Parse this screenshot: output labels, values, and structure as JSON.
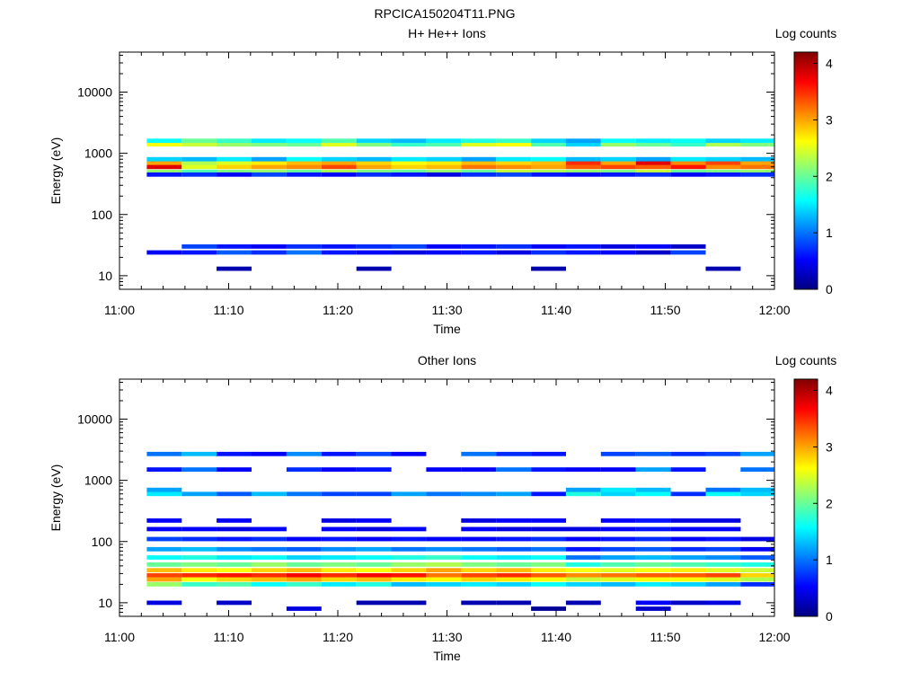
{
  "figure_title": "RPCICA150204T11.PNG",
  "colors": {
    "colormap": [
      "#000080",
      "#0000ff",
      "#0080ff",
      "#00ffff",
      "#80ff80",
      "#ffff00",
      "#ff8000",
      "#ff0000",
      "#800000"
    ]
  },
  "chart_data": [
    {
      "type": "heatmap",
      "title": "H+ He++ Ions",
      "xlabel": "Time",
      "ylabel": "Energy (eV)",
      "x_ticks": [
        "11:00",
        "11:10",
        "11:20",
        "11:30",
        "11:40",
        "11:50",
        "12:00"
      ],
      "y_ticks": [
        "10",
        "100",
        "1000",
        "10000"
      ],
      "y_scale": "log",
      "ylim": [
        6,
        45000
      ],
      "colorbar": {
        "label": "Log counts",
        "ticks": [
          "0",
          "1",
          "2",
          "3",
          "4"
        ],
        "range": [
          0,
          4.2
        ]
      },
      "time_bins_min": [
        2.5,
        5.7,
        8.9,
        12.1,
        15.3,
        18.5,
        21.7,
        24.9,
        28.1,
        31.3,
        34.5,
        37.7,
        40.9,
        44.1,
        47.3,
        50.5,
        53.7,
        56.9,
        60.0
      ],
      "energy_rows": [
        {
          "e": 600,
          "c": [
            3.8,
            2.5,
            2.8,
            3.0,
            3.1,
            3.4,
            3.0,
            2.8,
            2.9,
            3.2,
            3.1,
            3.0,
            3.3,
            3.4,
            3.3,
            3.6,
            3.1,
            3.2
          ]
        },
        {
          "e": 700,
          "c": [
            3.0,
            2.3,
            2.5,
            2.7,
            2.9,
            3.0,
            2.8,
            2.6,
            2.7,
            2.9,
            2.8,
            2.9,
            3.5,
            3.0,
            3.8,
            3.1,
            3.4,
            3.0
          ]
        },
        {
          "e": 500,
          "c": [
            2.2,
            1.9,
            2.1,
            2.2,
            2.0,
            2.3,
            2.1,
            2.0,
            2.2,
            2.0,
            2.4,
            2.3,
            2.2,
            2.1,
            2.4,
            2.0,
            2.1,
            2.2
          ]
        },
        {
          "e": 1400,
          "c": [
            2.6,
            2.4,
            2.2,
            2.1,
            2.0,
            2.5,
            2.1,
            1.8,
            1.9,
            2.5,
            2.6,
            1.9,
            1.4,
            2.2,
            2.0,
            1.8,
            2.3,
            2.1
          ]
        },
        {
          "e": 1600,
          "c": [
            1.6,
            2.0,
            1.8,
            1.5,
            1.6,
            1.9,
            1.4,
            1.3,
            1.5,
            1.7,
            1.8,
            1.4,
            1.2,
            1.6,
            1.5,
            1.6,
            1.4,
            1.5
          ]
        },
        {
          "e": 800,
          "c": [
            1.4,
            1.3,
            1.5,
            1.2,
            1.6,
            1.4,
            1.3,
            1.5,
            1.4,
            1.2,
            1.5,
            1.6,
            1.3,
            1.4,
            1.2,
            1.5,
            1.4,
            1.3
          ]
        },
        {
          "e": 450,
          "c": [
            0.6,
            0.7,
            0.5,
            0.8,
            0.6,
            0.5,
            0.7,
            0.6,
            0.4,
            0.7,
            0.8,
            0.6,
            0.5,
            0.6,
            0.7,
            0.5,
            0.6,
            0.7
          ]
        },
        {
          "e": 24,
          "c": [
            0.5,
            0.6,
            0.9,
            0.7,
            1.0,
            0.6,
            0.5,
            0.4,
            0.5,
            0.6,
            0.4,
            0.7,
            0.6,
            0.5,
            0.3,
            0.8,
            0.0,
            0.0
          ]
        },
        {
          "e": 30,
          "c": [
            0.0,
            0.8,
            0.6,
            0.5,
            0.7,
            0.6,
            0.7,
            0.8,
            0.5,
            0.6,
            0.7,
            0.5,
            0.6,
            0.4,
            0.5,
            0.3,
            0.0,
            0.0
          ]
        },
        {
          "e": 13,
          "c": [
            0.0,
            0.0,
            0.2,
            0.0,
            0.0,
            0.0,
            0.2,
            0.0,
            0.0,
            0.0,
            0.0,
            0.2,
            0.0,
            0.0,
            0.0,
            0.0,
            0.2,
            0.0
          ]
        }
      ]
    },
    {
      "type": "heatmap",
      "title": "Other Ions",
      "xlabel": "Time",
      "ylabel": "Energy (eV)",
      "x_ticks": [
        "11:00",
        "11:10",
        "11:20",
        "11:30",
        "11:40",
        "11:50",
        "12:00"
      ],
      "y_ticks": [
        "10",
        "100",
        "1000",
        "10000"
      ],
      "y_scale": "log",
      "ylim": [
        6,
        45000
      ],
      "colorbar": {
        "label": "Log counts",
        "ticks": [
          "0",
          "1",
          "2",
          "3",
          "4"
        ],
        "range": [
          0,
          4.2
        ]
      },
      "time_bins_min": [
        2.5,
        5.7,
        8.9,
        12.1,
        15.3,
        18.5,
        21.7,
        24.9,
        28.1,
        31.3,
        34.5,
        37.7,
        40.9,
        44.1,
        47.3,
        50.5,
        53.7,
        56.9,
        60.0
      ],
      "energy_rows": [
        {
          "e": 28,
          "c": [
            3.4,
            3.5,
            3.6,
            3.5,
            3.7,
            3.5,
            3.7,
            3.6,
            3.2,
            3.4,
            3.5,
            3.3,
            3.1,
            3.2,
            3.3,
            3.3,
            3.4,
            2.8
          ]
        },
        {
          "e": 24,
          "c": [
            3.0,
            2.6,
            2.8,
            2.9,
            3.0,
            2.8,
            2.9,
            2.7,
            2.6,
            2.8,
            2.7,
            2.6,
            2.4,
            2.5,
            2.6,
            2.6,
            2.5,
            2.3
          ]
        },
        {
          "e": 34,
          "c": [
            2.9,
            2.7,
            2.6,
            2.8,
            2.9,
            2.7,
            2.6,
            2.8,
            3.0,
            2.8,
            2.9,
            2.7,
            2.6,
            2.5,
            2.6,
            2.7,
            2.5,
            2.4
          ]
        },
        {
          "e": 20,
          "c": [
            2.2,
            1.8,
            1.9,
            1.6,
            1.8,
            1.5,
            1.7,
            1.3,
            1.4,
            1.5,
            1.4,
            1.6,
            1.4,
            1.3,
            1.5,
            1.4,
            1.2,
            0.7
          ]
        },
        {
          "e": 42,
          "c": [
            2.0,
            2.1,
            2.0,
            2.2,
            2.0,
            2.1,
            2.0,
            2.2,
            2.3,
            2.1,
            2.0,
            2.1,
            1.7,
            1.9,
            2.0,
            1.9,
            1.8,
            1.7
          ]
        },
        {
          "e": 55,
          "c": [
            1.6,
            1.7,
            1.5,
            1.6,
            1.4,
            1.5,
            1.6,
            1.7,
            1.8,
            1.6,
            1.5,
            1.6,
            1.0,
            1.2,
            1.3,
            1.2,
            1.1,
            0.9
          ]
        },
        {
          "e": 75,
          "c": [
            1.2,
            1.3,
            1.1,
            1.0,
            0.9,
            1.1,
            1.2,
            1.0,
            1.1,
            1.0,
            0.9,
            1.0,
            0.6,
            0.8,
            0.9,
            0.7,
            0.8,
            0.5
          ]
        },
        {
          "e": 110,
          "c": [
            0.8,
            0.7,
            0.6,
            0.7,
            0.5,
            0.6,
            0.5,
            0.6,
            0.5,
            0.5,
            0.6,
            0.7,
            0.5,
            0.6,
            0.7,
            0.5,
            0.6,
            0.4
          ]
        },
        {
          "e": 160,
          "c": [
            0.5,
            0.5,
            0.4,
            0.5,
            0.0,
            0.5,
            0.4,
            0.5,
            0.0,
            0.5,
            0.4,
            0.4,
            0.4,
            0.5,
            0.6,
            0.5,
            0.5,
            0.0
          ]
        },
        {
          "e": 220,
          "c": [
            0.5,
            0.0,
            0.5,
            0.0,
            0.0,
            0.4,
            0.5,
            0.0,
            0.0,
            0.4,
            0.5,
            0.5,
            0.0,
            0.5,
            0.6,
            0.4,
            0.4,
            0.0
          ]
        },
        {
          "e": 600,
          "c": [
            1.5,
            1.2,
            0.9,
            1.3,
            1.0,
            0.8,
            0.8,
            1.2,
            1.0,
            1.1,
            1.2,
            0.6,
            1.7,
            1.4,
            1.6,
            0.7,
            1.6,
            1.4
          ]
        },
        {
          "e": 700,
          "c": [
            1.2,
            0.0,
            0.0,
            0.0,
            0.0,
            0.0,
            0.0,
            0.0,
            0.0,
            0.0,
            0.0,
            0.0,
            1.2,
            1.5,
            1.3,
            0.0,
            1.0,
            1.3
          ]
        },
        {
          "e": 1500,
          "c": [
            0.6,
            1.0,
            0.5,
            0.0,
            0.7,
            0.5,
            0.6,
            0.0,
            0.5,
            0.5,
            1.0,
            0.6,
            0.5,
            0.5,
            1.2,
            0.6,
            0.0,
            1.0
          ]
        },
        {
          "e": 2700,
          "c": [
            1.0,
            1.3,
            0.6,
            0.5,
            1.1,
            0.6,
            0.8,
            0.5,
            0.0,
            1.0,
            0.7,
            0.6,
            0.0,
            0.8,
            0.9,
            0.7,
            0.8,
            1.2
          ]
        },
        {
          "e": 10,
          "c": [
            0.4,
            0.0,
            0.3,
            0.0,
            0.0,
            0.0,
            0.2,
            0.2,
            0.0,
            0.2,
            0.2,
            0.0,
            0.2,
            0.0,
            0.5,
            0.3,
            0.4,
            0.0
          ]
        },
        {
          "e": 8,
          "c": [
            0.0,
            0.0,
            0.0,
            0.0,
            0.4,
            0.0,
            0.0,
            0.0,
            0.0,
            0.0,
            0.0,
            0.1,
            0.0,
            0.0,
            0.3,
            0.0,
            0.0,
            0.0
          ]
        }
      ]
    }
  ]
}
